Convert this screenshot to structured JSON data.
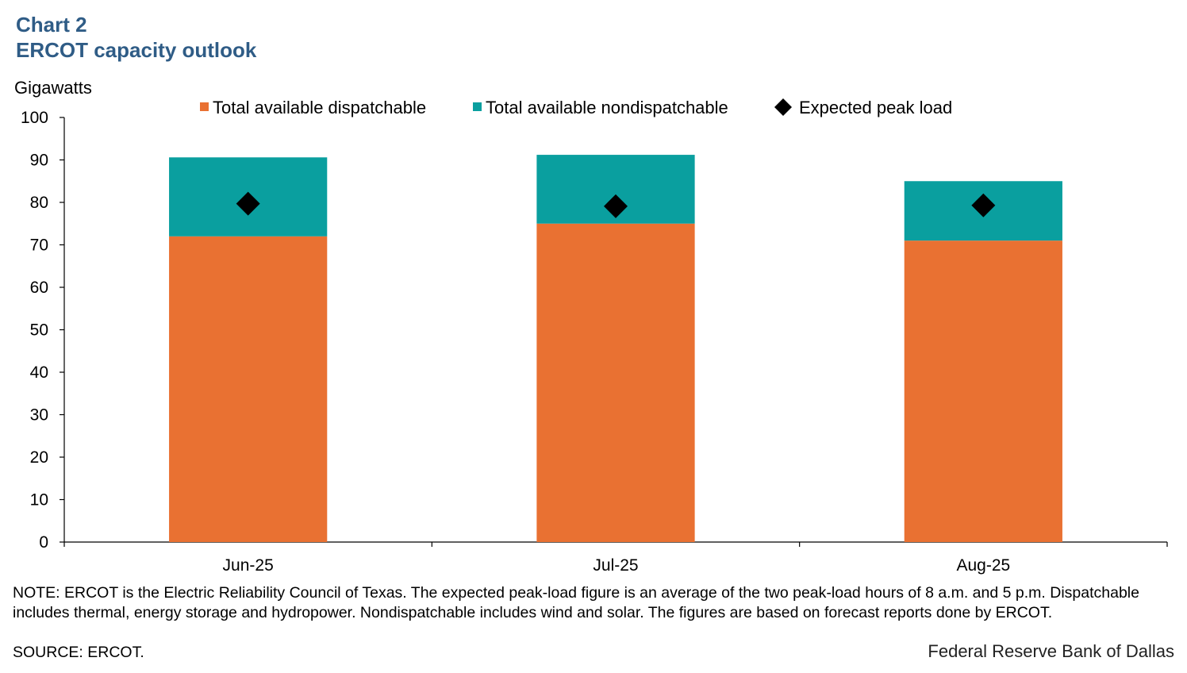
{
  "header": {
    "chart_label": "Chart 2",
    "title": "ERCOT capacity outlook"
  },
  "chart_data": {
    "type": "bar",
    "stacked": true,
    "ylabel": "Gigawatts",
    "ylim": [
      0,
      100
    ],
    "yticks": [
      0,
      10,
      20,
      30,
      40,
      50,
      60,
      70,
      80,
      90,
      100
    ],
    "categories": [
      "Jun-25",
      "Jul-25",
      "Aug-25"
    ],
    "series": [
      {
        "name": "Total available dispatchable",
        "color": "#e97132",
        "values": [
          72,
          75,
          71
        ]
      },
      {
        "name": "Total available nondispatchable",
        "color": "#0a9f9f",
        "values": [
          18.6,
          16.2,
          14
        ]
      }
    ],
    "markers": {
      "name": "Expected peak load",
      "color": "#000000",
      "shape": "diamond",
      "values": [
        79.7,
        79.1,
        79.3
      ]
    },
    "legend_position": "top"
  },
  "footer": {
    "note": "NOTE: ERCOT is the Electric Reliability Council of Texas. The expected peak-load figure is an average of the two peak-load hours of 8 a.m. and 5 p.m. Dispatchable includes thermal, energy storage and hydropower. Nondispatchable includes wind and solar. The figures are based on forecast reports done by ERCOT.",
    "source": "SOURCE: ERCOT.",
    "branding": "Federal Reserve Bank of Dallas"
  }
}
